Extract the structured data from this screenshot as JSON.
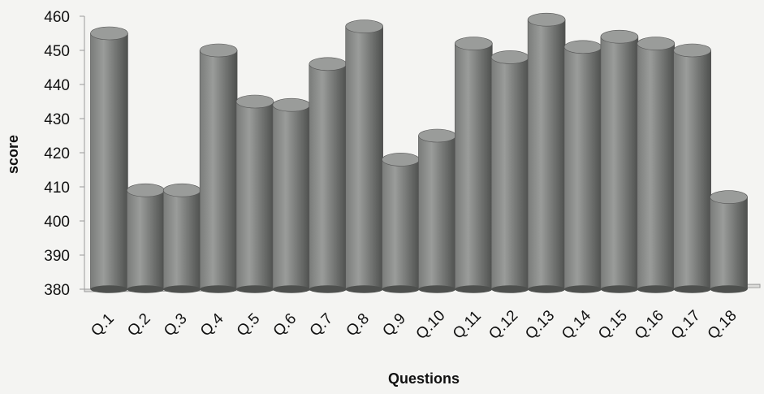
{
  "chart_data": {
    "type": "bar",
    "style": "3d-cylinder",
    "xlabel": "Questions",
    "ylabel": "score",
    "ylim": [
      380,
      460
    ],
    "yticks": [
      380,
      390,
      400,
      410,
      420,
      430,
      440,
      450,
      460
    ],
    "grid": false,
    "legend": "none",
    "categories": [
      "Q.1",
      "Q.2",
      "Q.3",
      "Q.4",
      "Q.5",
      "Q.6",
      "Q.7",
      "Q.8",
      "Q.9",
      "Q.10",
      "Q.11",
      "Q.12",
      "Q.13",
      "Q.14",
      "Q.15",
      "Q.16",
      "Q.17",
      "Q.18"
    ],
    "values": [
      455,
      409,
      409,
      450,
      435,
      434,
      446,
      457,
      418,
      425,
      452,
      448,
      459,
      451,
      454,
      452,
      450,
      407
    ],
    "colors": {
      "bar": "#7a7c7a",
      "bar_light": "#9a9c9a",
      "bar_dark": "#4e504e",
      "axis": "#9a9a9a"
    }
  }
}
